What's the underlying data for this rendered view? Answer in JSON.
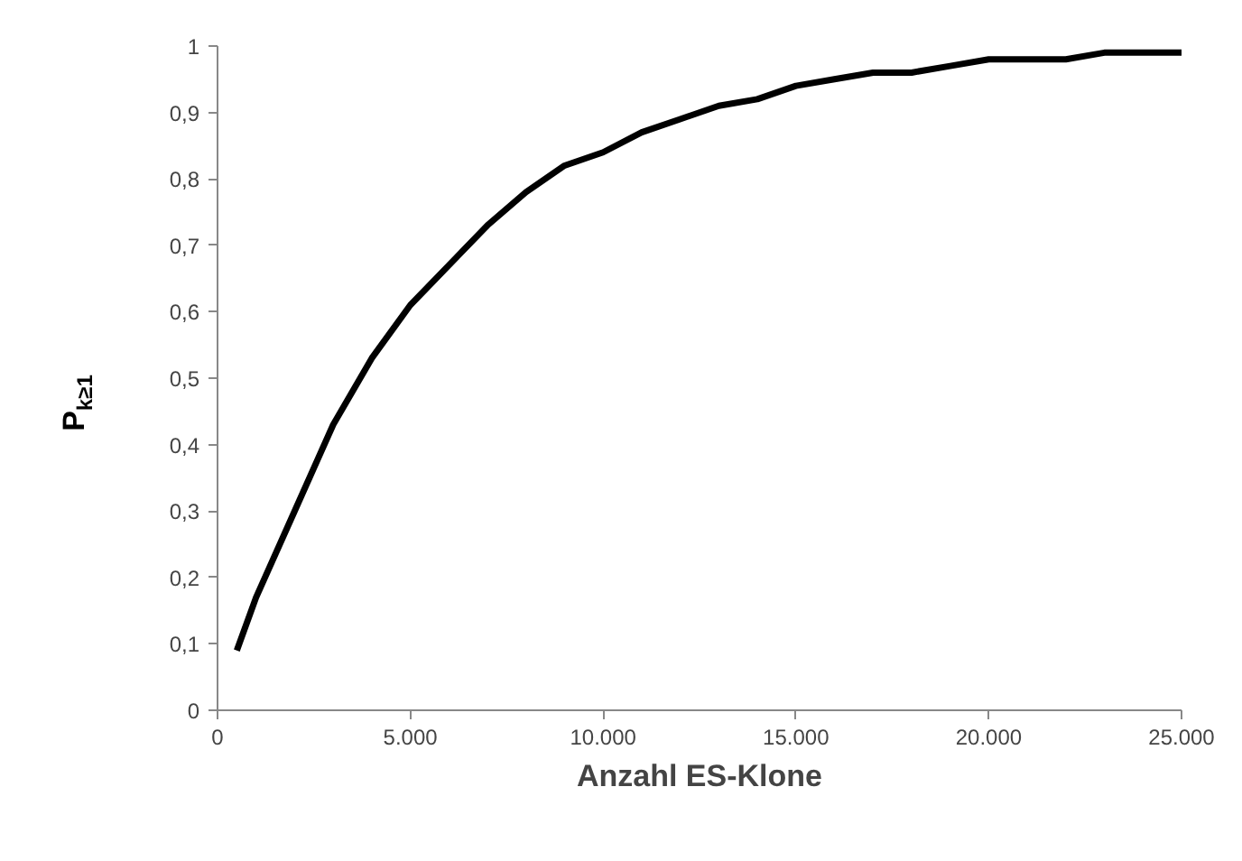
{
  "chart_data": {
    "type": "line",
    "xlabel": "Anzahl ES-Klone",
    "ylabel": "P$_{k≥1}$",
    "x": [
      500,
      1000,
      2000,
      3000,
      4000,
      5000,
      6000,
      7000,
      8000,
      9000,
      10000,
      11000,
      12000,
      13000,
      14000,
      15000,
      16000,
      17000,
      18000,
      19000,
      20000,
      21000,
      22000,
      23000,
      24000,
      25000
    ],
    "series": [
      {
        "color": "#000000",
        "values": [
          0.09,
          0.17,
          0.3,
          0.43,
          0.53,
          0.61,
          0.67,
          0.73,
          0.78,
          0.82,
          0.84,
          0.87,
          0.89,
          0.91,
          0.92,
          0.94,
          0.95,
          0.96,
          0.96,
          0.97,
          0.98,
          0.98,
          0.98,
          0.99,
          0.99,
          0.99
        ]
      }
    ],
    "xlim": [
      0,
      25000
    ],
    "xticks": [
      {
        "value": 0,
        "label": "0"
      },
      {
        "value": 5000,
        "label": "5.000"
      },
      {
        "value": 10000,
        "label": "10.000"
      },
      {
        "value": 15000,
        "label": "15.000"
      },
      {
        "value": 20000,
        "label": "20.000"
      },
      {
        "value": 25000,
        "label": "25.000"
      }
    ],
    "ylim": [
      0,
      1
    ],
    "yticks": [
      0,
      {
        "value": 0.1,
        "label": "0,1"
      },
      {
        "value": 0.2,
        "label": "0,2"
      },
      {
        "value": 0.3,
        "label": "0,3"
      },
      {
        "value": 0.4,
        "label": "0,4"
      },
      {
        "value": 0.5,
        "label": "0,5"
      },
      {
        "value": 0.6,
        "label": "0,6"
      },
      {
        "value": 0.7,
        "label": "0,7"
      },
      {
        "value": 0.8,
        "label": "0,8"
      },
      {
        "value": 0.9,
        "label": "0,9"
      },
      1
    ],
    "grid": false,
    "marker": "none",
    "line_style": "solid"
  }
}
